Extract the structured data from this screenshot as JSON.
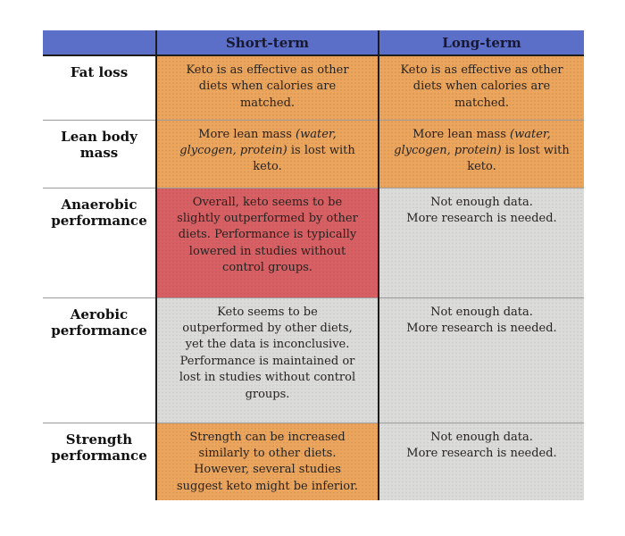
{
  "colors": {
    "header_bg": "#5b6fc9",
    "header_text": "#181830",
    "label_text": "#111111",
    "cell_text": "#262220",
    "orange": "#eba55d",
    "red": "#d76064",
    "gray": "#dbdbd9",
    "row_border": "#9b9b9b",
    "column_border": "#1c1c1c",
    "label_bg": "#ffffff"
  },
  "chart_data": {
    "type": "table",
    "title": "",
    "columns": [
      "",
      "Short-term",
      "Long-term"
    ],
    "rows": [
      {
        "label": "Fat loss",
        "cells": [
          {
            "column": "Short-term",
            "bg": "orange",
            "segments": [
              {
                "t": "Keto is as effective as other\ndiets when calories are\nmatched.",
                "i": false
              }
            ]
          },
          {
            "column": "Long-term",
            "bg": "orange",
            "segments": [
              {
                "t": "Keto is as effective as other\ndiets when calories are\nmatched.",
                "i": false
              }
            ]
          }
        ]
      },
      {
        "label": "Lean body mass",
        "cells": [
          {
            "column": "Short-term",
            "bg": "orange",
            "segments": [
              {
                "t": "More lean mass ",
                "i": false
              },
              {
                "t": "(water,\nglycogen, protein)",
                "i": true
              },
              {
                "t": " is lost with\nketo.",
                "i": false
              }
            ]
          },
          {
            "column": "Long-term",
            "bg": "orange",
            "segments": [
              {
                "t": "More lean mass ",
                "i": false
              },
              {
                "t": "(water,\nglycogen, protein)",
                "i": true
              },
              {
                "t": " is lost with\nketo.",
                "i": false
              }
            ]
          }
        ]
      },
      {
        "label": "Anaerobic performance",
        "cells": [
          {
            "column": "Short-term",
            "bg": "red",
            "segments": [
              {
                "t": "Overall, keto seems to be\nslightly outperformed by other\ndiets. Performance is typically\nlowered in studies without\ncontrol groups.",
                "i": false
              }
            ]
          },
          {
            "column": "Long-term",
            "bg": "gray",
            "segments": [
              {
                "t": "Not enough data.\nMore research is needed.",
                "i": false
              }
            ]
          }
        ]
      },
      {
        "label": "Aerobic performance",
        "cells": [
          {
            "column": "Short-term",
            "bg": "gray",
            "segments": [
              {
                "t": "Keto seems to be\noutperformed by other diets,\nyet the data is inconclusive.\nPerformance is maintained or\nlost in studies without control\ngroups.",
                "i": false
              }
            ]
          },
          {
            "column": "Long-term",
            "bg": "gray",
            "segments": [
              {
                "t": "Not enough data.\nMore research is needed.",
                "i": false
              }
            ]
          }
        ]
      },
      {
        "label": "Strength performance",
        "cells": [
          {
            "column": "Short-term",
            "bg": "orange",
            "segments": [
              {
                "t": "Strength can be increased\nsimilarly to other diets.\nHowever, several studies\nsuggest keto might be inferior.",
                "i": false
              }
            ]
          },
          {
            "column": "Long-term",
            "bg": "gray",
            "segments": [
              {
                "t": "Not enough data.\nMore research is needed.",
                "i": false
              }
            ]
          }
        ]
      }
    ]
  }
}
